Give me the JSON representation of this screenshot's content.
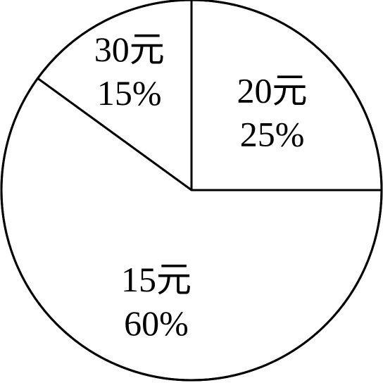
{
  "chart_data": {
    "type": "pie",
    "title": "",
    "start_angle_deg": 0,
    "direction": "counterclockwise",
    "slices": [
      {
        "label": "20元",
        "percent_label": "25%",
        "value": 25
      },
      {
        "label": "30元",
        "percent_label": "15%",
        "value": 15
      },
      {
        "label": "15元",
        "percent_label": "60%",
        "value": 60
      }
    ],
    "fill_color": "#ffffff",
    "stroke_color": "#000000"
  }
}
